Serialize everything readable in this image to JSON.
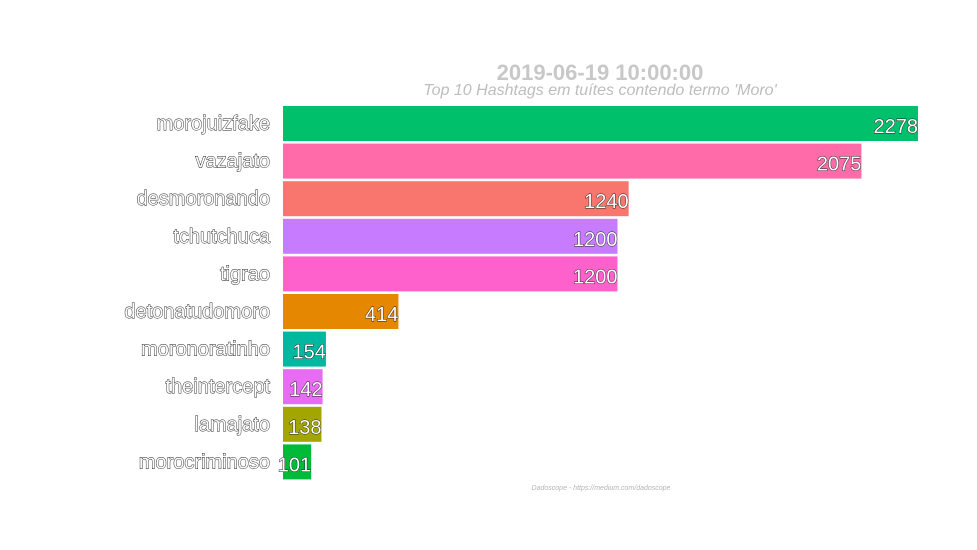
{
  "chart_data": {
    "type": "bar",
    "orientation": "horizontal",
    "title": "2019-06-19 10:00:00",
    "subtitle": "Top 10 Hashtags em tuítes contendo termo 'Moro'",
    "caption": "Dadoscope - https://medium.com/dadoscope",
    "categories": [
      "morojuizfake",
      "vazajato",
      "desmoronando",
      "tchutchuca",
      "tigrao",
      "detonatudomoro",
      "moronoratinho",
      "theintercept",
      "lamajato",
      "morocriminoso"
    ],
    "values": [
      2278,
      2075,
      1240,
      1200,
      1200,
      414,
      154,
      142,
      138,
      101
    ],
    "value_labels": [
      "2278",
      "2075",
      "1240",
      "1200",
      "1200",
      "414",
      "154",
      "142",
      "138",
      "101"
    ],
    "colors": [
      "#00c06b",
      "#ff6aa8",
      "#f8766d",
      "#c77cff",
      "#ff61cc",
      "#e58700",
      "#00b8a0",
      "#e76bf3",
      "#a3a500",
      "#00ba38"
    ],
    "xlim": [
      0,
      2278
    ],
    "grid": false,
    "legend": "none"
  }
}
